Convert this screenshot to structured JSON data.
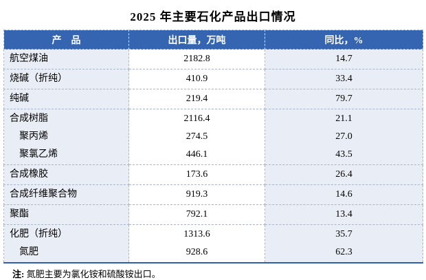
{
  "title": "2025 年主要石化产品出口情况",
  "table": {
    "headers": [
      "产　品",
      "出口量，万吨",
      "同比，%"
    ],
    "groups": [
      {
        "rows": [
          {
            "name": "航空煤油",
            "volume": "2182.8",
            "yoy": "14.7",
            "indent": false
          }
        ]
      },
      {
        "rows": [
          {
            "name": "烧碱（折纯）",
            "volume": "410.9",
            "yoy": "33.4",
            "indent": false
          }
        ]
      },
      {
        "rows": [
          {
            "name": "纯碱",
            "volume": "219.4",
            "yoy": "79.7",
            "indent": false
          }
        ]
      },
      {
        "rows": [
          {
            "name": "合成树脂",
            "volume": "2116.4",
            "yoy": "21.1",
            "indent": false
          },
          {
            "name": "聚丙烯",
            "volume": "274.5",
            "yoy": "27.0",
            "indent": true
          },
          {
            "name": "聚氯乙烯",
            "volume": "446.1",
            "yoy": "43.5",
            "indent": true
          }
        ]
      },
      {
        "rows": [
          {
            "name": "合成橡胶",
            "volume": "173.6",
            "yoy": "26.4",
            "indent": false
          }
        ]
      },
      {
        "rows": [
          {
            "name": "合成纤维聚合物",
            "volume": "919.3",
            "yoy": "14.6",
            "indent": false
          }
        ]
      },
      {
        "rows": [
          {
            "name": "聚酯",
            "volume": "792.1",
            "yoy": "13.4",
            "indent": false
          }
        ]
      },
      {
        "rows": [
          {
            "name": "化肥（折纯）",
            "volume": "1313.6",
            "yoy": "35.7",
            "indent": false
          },
          {
            "name": "氮肥",
            "volume": "928.6",
            "yoy": "62.3",
            "indent": true
          }
        ]
      }
    ]
  },
  "note": {
    "label": "注:",
    "text": "氮肥主要为氯化铵和硫酸铵出口。"
  },
  "colors": {
    "header_bg": "#3565B0",
    "header_text": "#FFFFFF",
    "row_tint": "#E9EDF5",
    "dashed_border": "#AAB5C7",
    "bottom_rule": "#2E5FAE",
    "body_text": "#000000"
  },
  "chart_data": {
    "type": "table",
    "title": "2025 年主要石化产品出口情况",
    "columns": [
      "产品",
      "出口量，万吨",
      "同比，%"
    ],
    "rows": [
      [
        "航空煤油",
        2182.8,
        14.7
      ],
      [
        "烧碱（折纯）",
        410.9,
        33.4
      ],
      [
        "纯碱",
        219.4,
        79.7
      ],
      [
        "合成树脂",
        2116.4,
        21.1
      ],
      [
        "聚丙烯",
        274.5,
        27.0
      ],
      [
        "聚氯乙烯",
        446.1,
        43.5
      ],
      [
        "合成橡胶",
        173.6,
        26.4
      ],
      [
        "合成纤维聚合物",
        919.3,
        14.6
      ],
      [
        "聚酯",
        792.1,
        13.4
      ],
      [
        "化肥（折纯）",
        1313.6,
        35.7
      ],
      [
        "氮肥",
        928.6,
        62.3
      ]
    ],
    "sub_items_of": {
      "聚丙烯": "合成树脂",
      "聚氯乙烯": "合成树脂",
      "氮肥": "化肥（折纯）"
    },
    "footnote": "注: 氮肥主要为氯化铵和硫酸铵出口。"
  }
}
